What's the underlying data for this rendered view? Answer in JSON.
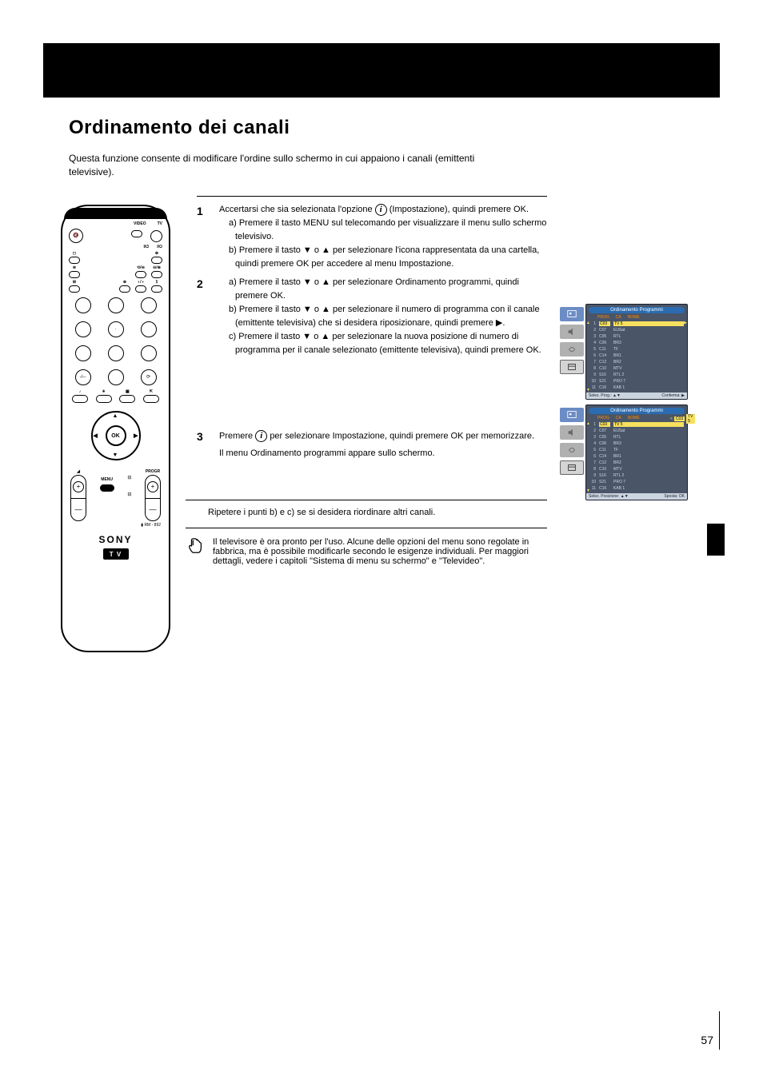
{
  "header": {
    "title": "Ordinamento dei canali",
    "subtitle": "Questa funzione consente di modificare l'ordine sullo schermo in cui appaiono i canali (emittenti televisive)."
  },
  "instructions": {
    "step1": {
      "num": "1",
      "body_before_icon": "Accertarsi che sia selezionata l'opzione ",
      "body_after_icon": " (Impostazione), quindi premere OK.",
      "sub_a_prefix": "a)",
      "sub_a_text": " Premere il tasto MENU sul telecomando per visualizzare il menu sullo schermo televisivo.",
      "sub_b_prefix": "b)",
      "sub_b_text": " Premere il tasto ▼ o ▲ per selezionare l'icona rappresentata da una cartella, quindi premere OK per accedere al menu Impostazione."
    },
    "step2": {
      "num": "2",
      "sub_a_prefix": "a)",
      "sub_a_text": " Premere il tasto ▼ o ▲ per selezionare Ordinamento programmi, quindi premere OK.",
      "sub_b_prefix": "b)",
      "sub_b_text": " Premere il tasto ▼ o ▲ per selezionare il numero di programma con il canale (emittente televisiva) che si desidera riposizionare, quindi premere ▶.",
      "sub_c_prefix": "c)",
      "sub_c_text": " Premere il tasto ▼ o ▲ per selezionare la nuova posizione di numero di programma per il canale selezionato (emittente televisiva), quindi premere OK."
    },
    "step3": {
      "num": "3",
      "body_before_icon": "Premere ",
      "body_after_icon": " per selezionare Impostazione, quindi premere OK per memorizzare.",
      "extra": "Il menu Ordinamento programmi appare sullo schermo."
    },
    "repeat": "Ripetere i punti b) e c) se si desidera riordinare altri canali.",
    "note": "Il televisore è ora pronto per l'uso. Alcune delle opzioni del menu sono regolate in fabbrica, ma è possibile modificarle secondo le esigenze individuali. Per maggiori dettagli, vedere i capitoli \"Sistema di menu su schermo\" e \"Televideo\"."
  },
  "remote": {
    "labels": {
      "video": "VIDEO",
      "tv": "TV",
      "menu": "MENU",
      "progr": "PROGR",
      "rm": "RM - 892",
      "ok": "OK"
    },
    "brand": "SONY",
    "tv_badge": "T V",
    "icon_glyphs": {
      "mute": "🔇",
      "power": "⏻",
      "standby": "I/⏻"
    }
  },
  "osd": {
    "title": "Ordinamento Programmi",
    "columns": {
      "prog": "PROG",
      "ca": "CA",
      "nome": "NOME"
    },
    "rows": [
      {
        "n": "1",
        "ca": "C03",
        "nm": "TV 5"
      },
      {
        "n": "2",
        "ca": "C07",
        "nm": "EUSat"
      },
      {
        "n": "3",
        "ca": "C05",
        "nm": "RTL"
      },
      {
        "n": "4",
        "ca": "C06",
        "nm": "BR3"
      },
      {
        "n": "5",
        "ca": "C11",
        "nm": "TF"
      },
      {
        "n": "6",
        "ca": "C14",
        "nm": "BR1"
      },
      {
        "n": "7",
        "ca": "C12",
        "nm": "BR2"
      },
      {
        "n": "8",
        "ca": "C10",
        "nm": "MTV"
      },
      {
        "n": "9",
        "ca": "S16",
        "nm": "RTL 2"
      },
      {
        "n": "10",
        "ca": "S21",
        "nm": "PRO 7"
      },
      {
        "n": "11",
        "ca": "C16",
        "nm": "KAB 1"
      }
    ],
    "footer1_left": "Selez. Prog.: ▲▼",
    "footer1_right": "Conferma: ▶",
    "footer2_left": "Selez. Posizione: ▲▼",
    "footer2_right": "Sposta: OK",
    "ext_ca": "C03",
    "ext_nm": "TV 5",
    "tab_colors": [
      "#6b8cc4",
      "#b0b0b0",
      "#b0b0b0",
      "#d4d4d4"
    ],
    "panel_bg": "#4a5568",
    "title_bg": "#2b6cb0",
    "header_color": "#ff8c00",
    "highlight_bg": "#f6e05e",
    "footer_bg": "#cbd5e0"
  },
  "page_number": "57"
}
